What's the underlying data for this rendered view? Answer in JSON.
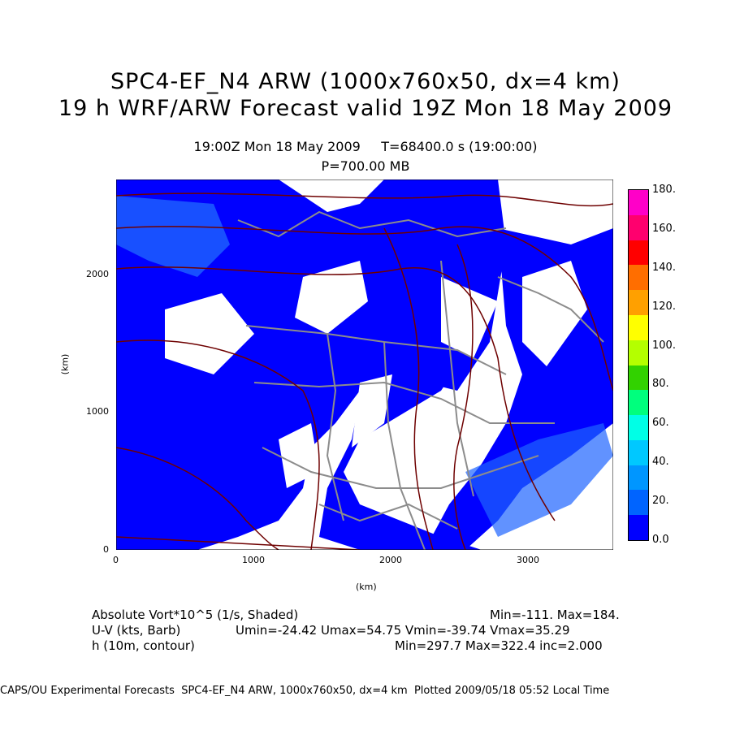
{
  "title": {
    "line1": "SPC4-EF_N4 ARW (1000x760x50, dx=4 km)",
    "line2": "19 h WRF/ARW Forecast valid 19Z Mon 18 May 2009"
  },
  "subtitle": {
    "time": "19:00Z Mon 18 May 2009     T=68400.0 s (19:00:00)",
    "level": "P=700.00 MB"
  },
  "axes": {
    "xlabel": "(km)",
    "ylabel": "(km)",
    "xticks": [
      "0",
      "1000",
      "2000",
      "3000"
    ],
    "yticks": [
      "0",
      "1000",
      "2000"
    ]
  },
  "legend": {
    "labels": [
      "180.",
      "160.",
      "140.",
      "120.",
      "100.",
      "80.",
      "60.",
      "40.",
      "20.",
      "0.0"
    ],
    "colors": [
      "#ff00c8",
      "#ff006e",
      "#ff0000",
      "#ff6e00",
      "#ffa000",
      "#ffff00",
      "#b4ff00",
      "#32d200",
      "#00ff7d",
      "#00ffe6",
      "#00c8ff",
      "#0096ff",
      "#0064ff",
      "#0000ff"
    ]
  },
  "info": {
    "row1_left": "Absolute Vort*10^5 (1/s, Shaded)",
    "row1_right": "Min=-111. Max=184.",
    "row2_left": "U-V (kts, Barb)",
    "row2_right": "Umin=-24.42 Umax=54.75 Vmin=-39.74 Vmax=35.29",
    "row3_left": "h (10m, contour)",
    "row3_right": "Min=297.7 Max=322.4 inc=2.000"
  },
  "footer": "CAPS/OU Experimental Forecasts  SPC4-EF_N4 ARW, 1000x760x50, dx=4 km  Plotted 2009/05/18 05:52 Local Time",
  "map_colors": {
    "vorticity": "#0000ff",
    "vorticity_light": "#1e64ff",
    "state_lines": "#8c8c8c",
    "height_contours": "#6e0000"
  }
}
